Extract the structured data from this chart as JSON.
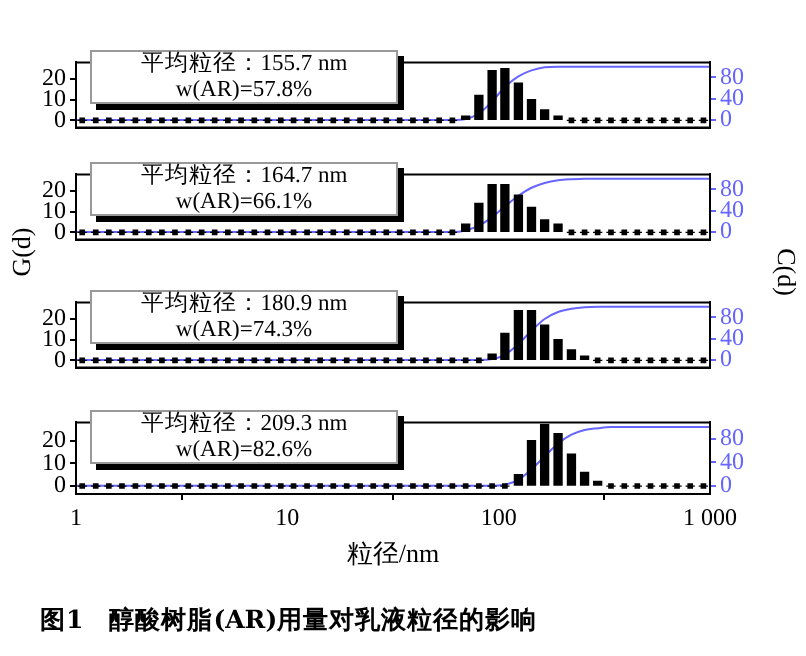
{
  "chart_data": [
    {
      "type": "bar",
      "x": [
        1.07,
        1.24,
        1.43,
        1.65,
        1.91,
        2.21,
        2.55,
        2.94,
        3.4,
        3.93,
        4.53,
        5.23,
        6.04,
        6.98,
        8.06,
        9.31,
        10.7,
        12.4,
        14.3,
        16.5,
        19.1,
        22.1,
        25.5,
        29.4,
        34.0,
        39.3,
        45.3,
        52.3,
        60.4,
        69.8,
        80.6,
        93.1,
        107,
        124,
        143,
        165,
        191,
        221,
        255,
        294,
        340,
        393,
        453,
        523,
        604,
        698,
        806,
        931
      ],
      "series": [
        {
          "color": "#000000",
          "values": [
            0,
            0,
            0,
            0,
            0,
            0,
            0,
            0,
            0,
            0,
            0,
            0,
            0,
            0,
            0,
            0,
            0,
            0,
            0,
            0,
            0,
            0,
            0,
            0,
            0,
            0,
            0,
            0,
            0,
            2,
            12,
            24,
            25,
            18,
            10,
            5,
            2,
            0,
            0,
            0,
            0,
            0,
            0,
            0,
            0,
            0,
            0,
            0
          ]
        },
        {
          "type": "scatter",
          "marker": "square",
          "color": "#000000",
          "x": [
            1.07,
            1.24,
            1.43,
            1.65,
            1.91,
            2.21,
            2.55,
            2.94,
            3.4,
            3.93,
            4.53,
            5.23,
            6.04,
            6.98,
            8.06,
            9.31,
            10.7,
            12.4,
            14.3,
            16.5,
            19.1,
            22.1,
            25.5,
            29.4,
            34.0,
            39.3,
            45.3,
            52.3,
            60.4,
            221,
            255,
            294,
            340,
            393,
            453,
            523,
            604,
            698,
            806,
            931
          ],
          "values": [
            0,
            0,
            0,
            0,
            0,
            0,
            0,
            0,
            0,
            0,
            0,
            0,
            0,
            0,
            0,
            0,
            0,
            0,
            0,
            0,
            0,
            0,
            0,
            0,
            0,
            0,
            0,
            0,
            0,
            0,
            0,
            0,
            0,
            0,
            0,
            0,
            0,
            0,
            0,
            0
          ]
        },
        {
          "type": "line",
          "axis": "y2",
          "color": "#6666ff",
          "x": [
            1,
            60.4,
            69.8,
            80.6,
            93.1,
            107,
            124,
            143,
            165,
            191,
            1000
          ],
          "values": [
            0,
            0,
            2,
            12,
            35,
            62,
            82,
            93,
            99,
            100,
            100
          ]
        }
      ],
      "xlim": [
        1,
        1000
      ],
      "log": "x",
      "ylim": [
        -3.5,
        28
      ],
      "yticks": [
        0,
        10,
        20
      ],
      "y2lim": [
        -14,
        108
      ],
      "y2ticks": [
        0,
        40,
        80
      ],
      "tick_labels": "y",
      "annotations": [
        "平均粒径：155.7 nm",
        "w(AR)=57.8%"
      ]
    },
    {
      "type": "bar",
      "x": [
        1.07,
        1.24,
        1.43,
        1.65,
        1.91,
        2.21,
        2.55,
        2.94,
        3.4,
        3.93,
        4.53,
        5.23,
        6.04,
        6.98,
        8.06,
        9.31,
        10.7,
        12.4,
        14.3,
        16.5,
        19.1,
        22.1,
        25.5,
        29.4,
        34.0,
        39.3,
        45.3,
        52.3,
        60.4,
        69.8,
        80.6,
        93.1,
        107,
        124,
        143,
        165,
        191,
        221,
        255,
        294,
        340,
        393,
        453,
        523,
        604,
        698,
        806,
        931
      ],
      "series": [
        {
          "color": "#000000",
          "values": [
            0,
            0,
            0,
            0,
            0,
            0,
            0,
            0,
            0,
            0,
            0,
            0,
            0,
            0,
            0,
            0,
            0,
            0,
            0,
            0,
            0,
            0,
            0,
            0,
            0,
            0,
            0,
            0,
            0,
            4,
            14,
            23,
            23,
            18,
            12,
            6,
            4,
            0,
            0,
            0,
            0,
            0,
            0,
            0,
            0,
            0,
            0,
            0
          ]
        },
        {
          "type": "scatter",
          "marker": "square",
          "color": "#000000",
          "x": [
            1.07,
            1.24,
            1.43,
            1.65,
            1.91,
            2.21,
            2.55,
            2.94,
            3.4,
            3.93,
            4.53,
            5.23,
            6.04,
            6.98,
            8.06,
            9.31,
            10.7,
            12.4,
            14.3,
            16.5,
            19.1,
            22.1,
            25.5,
            29.4,
            34.0,
            39.3,
            45.3,
            52.3,
            60.4,
            221,
            255,
            294,
            340,
            393,
            453,
            523,
            604,
            698,
            806,
            931
          ],
          "values": [
            0,
            0,
            0,
            0,
            0,
            0,
            0,
            0,
            0,
            0,
            0,
            0,
            0,
            0,
            0,
            0,
            0,
            0,
            0,
            0,
            0,
            0,
            0,
            0,
            0,
            0,
            0,
            0,
            0,
            0,
            0,
            0,
            0,
            0,
            0,
            0,
            0,
            0,
            0,
            0
          ]
        },
        {
          "type": "line",
          "axis": "y2",
          "color": "#6666ff",
          "x": [
            1,
            60.4,
            69.8,
            80.6,
            93.1,
            107,
            124,
            143,
            165,
            191,
            221,
            255,
            1000
          ],
          "values": [
            0,
            0,
            3,
            12,
            28,
            48,
            68,
            83,
            92,
            97,
            99,
            100,
            100
          ]
        }
      ],
      "xlim": [
        1,
        1000
      ],
      "log": "x",
      "ylim": [
        -3.5,
        28
      ],
      "yticks": [
        0,
        10,
        20
      ],
      "y2lim": [
        -14,
        108
      ],
      "y2ticks": [
        0,
        40,
        80
      ],
      "ylabel": "G(d)",
      "y2label": "C(d)",
      "tick_labels": "y",
      "annotations": [
        "平均粒径：164.7 nm",
        "w(AR)=66.1%"
      ]
    },
    {
      "type": "bar",
      "x": [
        1.07,
        1.24,
        1.43,
        1.65,
        1.91,
        2.21,
        2.55,
        2.94,
        3.4,
        3.93,
        4.53,
        5.23,
        6.04,
        6.98,
        8.06,
        9.31,
        10.7,
        12.4,
        14.3,
        16.5,
        19.1,
        22.1,
        25.5,
        29.4,
        34.0,
        39.3,
        45.3,
        52.3,
        60.4,
        69.8,
        80.6,
        93.1,
        107,
        124,
        143,
        165,
        191,
        221,
        255,
        294,
        340,
        393,
        453,
        523,
        604,
        698,
        806,
        931
      ],
      "series": [
        {
          "color": "#000000",
          "values": [
            0,
            0,
            0,
            0,
            0,
            0,
            0,
            0,
            0,
            0,
            0,
            0,
            0,
            0,
            0,
            0,
            0,
            0,
            0,
            0,
            0,
            0,
            0,
            0,
            0,
            0,
            0,
            0,
            0,
            0,
            0,
            3,
            13,
            24,
            24,
            17,
            10,
            5,
            2,
            0,
            0,
            0,
            0,
            0,
            0,
            0,
            0,
            0
          ]
        },
        {
          "type": "scatter",
          "marker": "square",
          "color": "#000000",
          "x": [
            1.07,
            1.24,
            1.43,
            1.65,
            1.91,
            2.21,
            2.55,
            2.94,
            3.4,
            3.93,
            4.53,
            5.23,
            6.04,
            6.98,
            8.06,
            9.31,
            10.7,
            12.4,
            14.3,
            16.5,
            19.1,
            22.1,
            25.5,
            29.4,
            34.0,
            39.3,
            45.3,
            52.3,
            60.4,
            69.8,
            80.6,
            294,
            340,
            393,
            453,
            523,
            604,
            698,
            806,
            931
          ],
          "values": [
            0,
            0,
            0,
            0,
            0,
            0,
            0,
            0,
            0,
            0,
            0,
            0,
            0,
            0,
            0,
            0,
            0,
            0,
            0,
            0,
            0,
            0,
            0,
            0,
            0,
            0,
            0,
            0,
            0,
            0,
            0,
            0,
            0,
            0,
            0,
            0,
            0,
            0,
            0,
            0
          ]
        },
        {
          "type": "line",
          "axis": "y2",
          "color": "#6666ff",
          "x": [
            1,
            80.6,
            93.1,
            107,
            124,
            143,
            165,
            191,
            221,
            255,
            294,
            1000
          ],
          "values": [
            0,
            0,
            2,
            10,
            30,
            55,
            77,
            90,
            96,
            99,
            100,
            100
          ]
        }
      ],
      "xlim": [
        1,
        1000
      ],
      "log": "x",
      "ylim": [
        -3.5,
        28
      ],
      "yticks": [
        0,
        10,
        20
      ],
      "y2lim": [
        -14,
        108
      ],
      "y2ticks": [
        0,
        40,
        80
      ],
      "tick_labels": "y",
      "annotations": [
        "平均粒径：180.9 nm",
        "w(AR)=74.3%"
      ]
    },
    {
      "type": "bar",
      "x": [
        1.07,
        1.24,
        1.43,
        1.65,
        1.91,
        2.21,
        2.55,
        2.94,
        3.4,
        3.93,
        4.53,
        5.23,
        6.04,
        6.98,
        8.06,
        9.31,
        10.7,
        12.4,
        14.3,
        16.5,
        19.1,
        22.1,
        25.5,
        29.4,
        34.0,
        39.3,
        45.3,
        52.3,
        60.4,
        69.8,
        80.6,
        93.1,
        107,
        124,
        143,
        165,
        191,
        221,
        255,
        294,
        340,
        393,
        453,
        523,
        604,
        698,
        806,
        931
      ],
      "series": [
        {
          "color": "#000000",
          "values": [
            0,
            0,
            0,
            0,
            0,
            0,
            0,
            0,
            0,
            0,
            0,
            0,
            0,
            0,
            0,
            0,
            0,
            0,
            0,
            0,
            0,
            0,
            0,
            0,
            0,
            0,
            0,
            0,
            0,
            0,
            0,
            0,
            0,
            5,
            20,
            27,
            23,
            14,
            6,
            2,
            0,
            0,
            0,
            0,
            0,
            0,
            0,
            0
          ]
        },
        {
          "type": "scatter",
          "marker": "square",
          "color": "#000000",
          "x": [
            1.07,
            1.24,
            1.43,
            1.65,
            1.91,
            2.21,
            2.55,
            2.94,
            3.4,
            3.93,
            4.53,
            5.23,
            6.04,
            6.98,
            8.06,
            9.31,
            10.7,
            12.4,
            14.3,
            16.5,
            19.1,
            22.1,
            25.5,
            29.4,
            34.0,
            39.3,
            45.3,
            52.3,
            60.4,
            69.8,
            80.6,
            93.1,
            107,
            340,
            393,
            453,
            523,
            604,
            698,
            806,
            931
          ],
          "values": [
            0,
            0,
            0,
            0,
            0,
            0,
            0,
            0,
            0,
            0,
            0,
            0,
            0,
            0,
            0,
            0,
            0,
            0,
            0,
            0,
            0,
            0,
            0,
            0,
            0,
            0,
            0,
            0,
            0,
            0,
            0,
            0,
            0,
            0,
            0,
            0,
            0,
            0,
            0,
            0,
            0
          ]
        },
        {
          "type": "line",
          "axis": "y2",
          "color": "#6666ff",
          "x": [
            1,
            93.1,
            107,
            124,
            143,
            165,
            191,
            221,
            255,
            294,
            340,
            1000
          ],
          "values": [
            0,
            0,
            2,
            10,
            28,
            50,
            72,
            87,
            95,
            98,
            100,
            100
          ]
        }
      ],
      "xlim": [
        1,
        1000
      ],
      "xticks": [
        1,
        10,
        100,
        {
          "value": 1000,
          "label": "1 000"
        }
      ],
      "log": "x",
      "ylim": [
        -3.5,
        28
      ],
      "yticks": [
        0,
        10,
        20
      ],
      "y2lim": [
        -14,
        108
      ],
      "y2ticks": [
        0,
        40,
        80
      ],
      "xlabel": "粒径/nm",
      "annotations": [
        "平均粒径：209.3 nm",
        "w(AR)=82.6%",
        "图1　醇酸树脂(AR)用量对乳液粒径的影响"
      ]
    }
  ]
}
